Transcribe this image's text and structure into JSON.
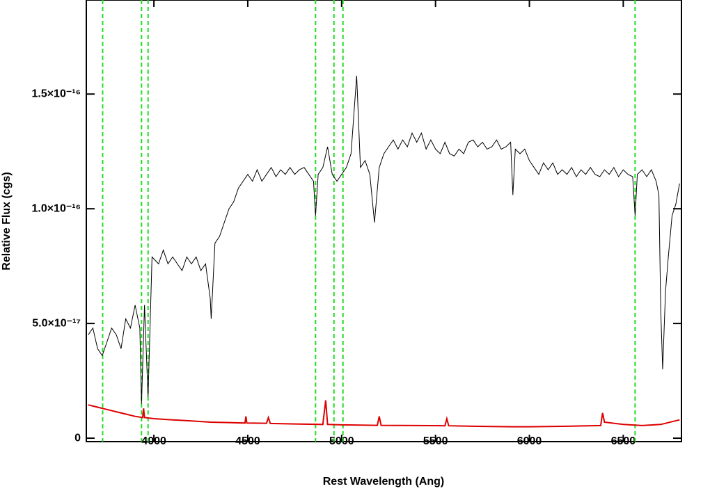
{
  "chart_data": {
    "type": "line",
    "x_label": "Rest Wavelength (Ang)",
    "y_label": "Relative Flux (cgs)",
    "xlim": [
      3640,
      6810
    ],
    "ylim": [
      -1.5e-18,
      1.91e-16
    ],
    "xticks": [
      4000,
      4500,
      5000,
      5500,
      6000,
      6500
    ],
    "yticks": [
      0,
      {
        "value": 5e-17,
        "label": "5.0×10⁻¹⁷"
      },
      {
        "value": 1e-16,
        "label": "1.0×10⁻¹⁶"
      },
      {
        "value": 1.5e-16,
        "label": "1.5×10⁻¹⁶"
      }
    ],
    "vlines": [
      3727,
      3934,
      3969,
      4861,
      4959,
      5007,
      6563
    ],
    "vline_color": "#22dd22",
    "series": [
      {
        "color": "#000000",
        "x": [
          3650,
          3675,
          3700,
          3725,
          3750,
          3775,
          3800,
          3825,
          3850,
          3875,
          3900,
          3925,
          3934,
          3950,
          3969,
          3990,
          4025,
          4050,
          4075,
          4100,
          4125,
          4150,
          4175,
          4200,
          4225,
          4250,
          4275,
          4300,
          4305,
          4325,
          4350,
          4375,
          4400,
          4425,
          4450,
          4475,
          4500,
          4525,
          4550,
          4575,
          4600,
          4625,
          4650,
          4675,
          4700,
          4725,
          4750,
          4775,
          4800,
          4825,
          4850,
          4861,
          4875,
          4900,
          4925,
          4950,
          4975,
          5000,
          5025,
          5050,
          5080,
          5100,
          5125,
          5150,
          5175,
          5200,
          5225,
          5250,
          5275,
          5300,
          5325,
          5350,
          5375,
          5400,
          5425,
          5450,
          5475,
          5500,
          5525,
          5550,
          5575,
          5600,
          5625,
          5650,
          5675,
          5700,
          5725,
          5750,
          5775,
          5800,
          5825,
          5850,
          5875,
          5900,
          5912,
          5925,
          5950,
          5975,
          6000,
          6025,
          6050,
          6075,
          6100,
          6125,
          6150,
          6175,
          6200,
          6225,
          6250,
          6275,
          6300,
          6325,
          6350,
          6375,
          6400,
          6425,
          6450,
          6475,
          6500,
          6525,
          6550,
          6563,
          6575,
          6600,
          6625,
          6650,
          6675,
          6690,
          6700,
          6710,
          6725,
          6740,
          6760,
          6780,
          6800
        ],
        "values": [
          4.5e-17,
          4.8e-17,
          3.9e-17,
          3.6e-17,
          4.2e-17,
          4.8e-17,
          4.5e-17,
          3.9e-17,
          5.2e-17,
          4.8e-17,
          5.8e-17,
          4.8e-17,
          1.5e-17,
          5.8e-17,
          1.8e-17,
          7.9e-17,
          7.6e-17,
          8.2e-17,
          7.6e-17,
          7.9e-17,
          7.6e-17,
          7.3e-17,
          7.9e-17,
          7.6e-17,
          7.9e-17,
          7.3e-17,
          7.6e-17,
          6.1e-17,
          5.2e-17,
          8.5e-17,
          8.8e-17,
          9.4e-17,
          1e-16,
          1.03e-16,
          1.09e-16,
          1.12e-16,
          1.15e-16,
          1.12e-16,
          1.17e-16,
          1.12e-16,
          1.15e-16,
          1.18e-16,
          1.14e-16,
          1.17e-16,
          1.15e-16,
          1.18e-16,
          1.15e-16,
          1.17e-16,
          1.18e-16,
          1.15e-16,
          1.12e-16,
          9.7e-17,
          1.15e-16,
          1.18e-16,
          1.27e-16,
          1.15e-16,
          1.12e-16,
          1.15e-16,
          1.18e-16,
          1.24e-16,
          1.58e-16,
          1.18e-16,
          1.21e-16,
          1.15e-16,
          9.4e-17,
          1.18e-16,
          1.24e-16,
          1.27e-16,
          1.3e-16,
          1.26e-16,
          1.3e-16,
          1.27e-16,
          1.33e-16,
          1.29e-16,
          1.33e-16,
          1.26e-16,
          1.3e-16,
          1.26e-16,
          1.24e-16,
          1.29e-16,
          1.24e-16,
          1.23e-16,
          1.26e-16,
          1.24e-16,
          1.29e-16,
          1.3e-16,
          1.27e-16,
          1.29e-16,
          1.26e-16,
          1.27e-16,
          1.3e-16,
          1.26e-16,
          1.27e-16,
          1.29e-16,
          1.06e-16,
          1.26e-16,
          1.24e-16,
          1.26e-16,
          1.21e-16,
          1.18e-16,
          1.15e-16,
          1.2e-16,
          1.17e-16,
          1.2e-16,
          1.15e-16,
          1.17e-16,
          1.15e-16,
          1.18e-16,
          1.14e-16,
          1.17e-16,
          1.15e-16,
          1.18e-16,
          1.15e-16,
          1.14e-16,
          1.17e-16,
          1.15e-16,
          1.18e-16,
          1.14e-16,
          1.17e-16,
          1.15e-16,
          1.14e-16,
          9.7e-17,
          1.15e-16,
          1.17e-16,
          1.14e-16,
          1.17e-16,
          1.12e-16,
          1.06e-16,
          5.5e-17,
          3e-17,
          6.4e-17,
          7.9e-17,
          9.7e-17,
          1.02e-16,
          1.11e-16
        ]
      },
      {
        "color": "#dd0000",
        "x": [
          3650,
          3700,
          3750,
          3800,
          3850,
          3900,
          3940,
          3945,
          3950,
          4000,
          4100,
          4200,
          4300,
          4400,
          4485,
          4490,
          4495,
          4600,
          4610,
          4620,
          4750,
          4900,
          4915,
          4925,
          5000,
          5100,
          5190,
          5200,
          5210,
          5400,
          5550,
          5560,
          5570,
          5700,
          5900,
          6000,
          6200,
          6380,
          6390,
          6400,
          6500,
          6600,
          6700,
          6800
        ],
        "values": [
          1.45e-17,
          1.35e-17,
          1.25e-17,
          1.15e-17,
          1.05e-17,
          9.5e-18,
          9e-18,
          1.3e-17,
          9e-18,
          8.5e-18,
          8e-18,
          7.5e-18,
          7e-18,
          6.8e-18,
          6.6e-18,
          9.5e-18,
          6.6e-18,
          6.5e-18,
          9e-18,
          6.4e-18,
          6.2e-18,
          6e-18,
          1.65e-17,
          6e-18,
          5.8e-18,
          5.7e-18,
          5.6e-18,
          9.5e-18,
          5.6e-18,
          5.5e-18,
          5.4e-18,
          8.5e-18,
          5.4e-18,
          5.2e-18,
          5e-18,
          5e-18,
          5.2e-18,
          5.5e-18,
          1.1e-17,
          7e-18,
          6e-18,
          5.5e-18,
          6e-18,
          8e-18
        ]
      }
    ]
  }
}
